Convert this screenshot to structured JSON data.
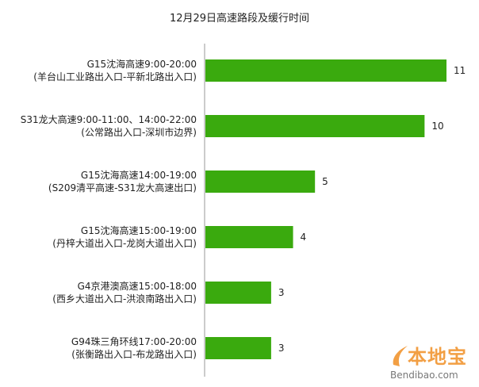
{
  "chart_data": {
    "type": "bar",
    "orientation": "horizontal",
    "title": "12月29日高速路段及缓行时间",
    "categories": [
      [
        "G15沈海高速9:00-20:00",
        "(羊台山工业路出入口-平新北路出入口)"
      ],
      [
        "S31龙大高速9:00-11:00、14:00-22:00",
        "(公常路出入口-深圳市边界)"
      ],
      [
        "G15沈海高速14:00-19:00",
        "(S209清平高速-S31龙大高速出口)"
      ],
      [
        "G15沈海高速15:00-19:00",
        "(丹梓大道出入口-龙岗大道出入口)"
      ],
      [
        "G4京港澳高速15:00-18:00",
        "(西乡大道出入口-洪浪南路出入口)"
      ],
      [
        "G94珠三角环线17:00-20:00",
        "(张衡路出入口-布龙路出入口)"
      ]
    ],
    "values": [
      11,
      10,
      5,
      4,
      3,
      3
    ],
    "xlim": [
      0,
      11
    ],
    "bar_color": "#3aaa0e",
    "axis_color": "#9a9a9a",
    "grid": false,
    "legend": "none",
    "data_labels": true
  },
  "watermark": {
    "logo_text": "本地宝",
    "url": "Bendibao.com",
    "color": "#f08a1c"
  }
}
